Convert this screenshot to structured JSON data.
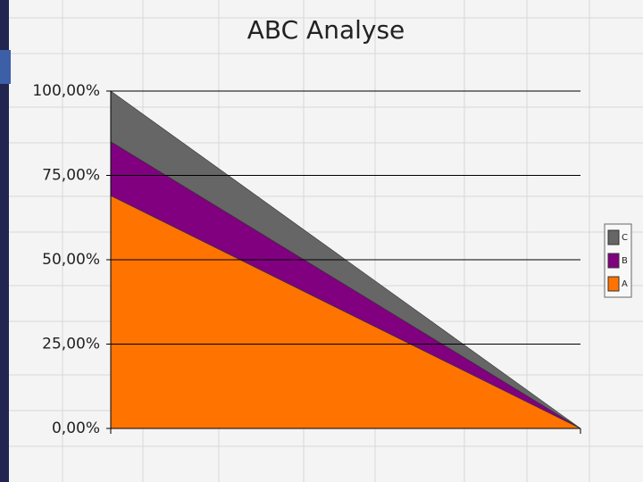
{
  "chart_data": {
    "type": "stacked-area",
    "title": "ABC Analyse",
    "categories": [
      null,
      null
    ],
    "series": [
      {
        "name": "A",
        "color": "#ff7300",
        "values": [
          69,
          0
        ]
      },
      {
        "name": "B",
        "color": "#800080",
        "values": [
          16,
          0
        ]
      },
      {
        "name": "C",
        "color": "#666666",
        "values": [
          15,
          0
        ]
      }
    ],
    "ylim": [
      0,
      100
    ],
    "yticks": [
      {
        "value": 0,
        "label": "0,00%"
      },
      {
        "value": 25,
        "label": "25,00%"
      },
      {
        "value": 50,
        "label": "50,00%"
      },
      {
        "value": 75,
        "label": "75,00%"
      },
      {
        "value": 100,
        "label": "100,00%"
      }
    ],
    "grid": true,
    "legend": "right"
  }
}
